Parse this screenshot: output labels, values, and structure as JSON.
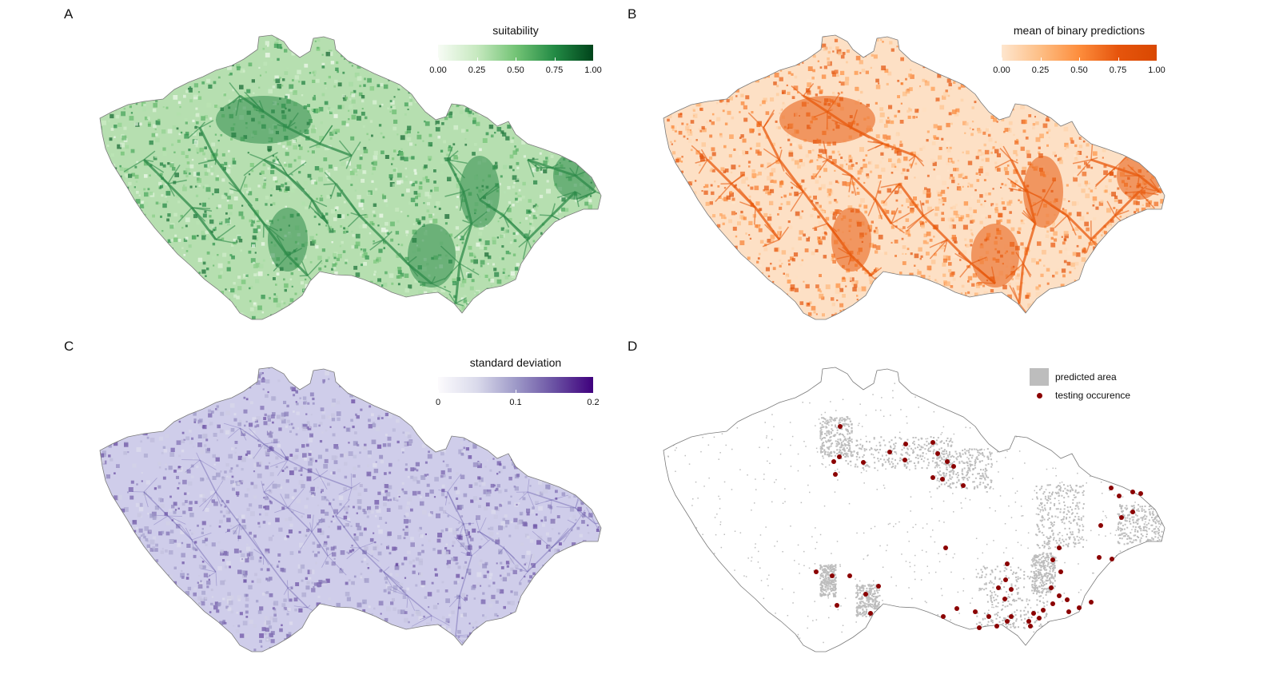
{
  "figure": {
    "panels": [
      {
        "id": "A",
        "label": "A",
        "type": "continuous_map",
        "legend": {
          "title": "suitability",
          "tick_labels": [
            "0.00",
            "0.25",
            "0.50",
            "0.75",
            "1.00"
          ],
          "range": [
            0,
            1
          ],
          "colors": [
            "#f7fcf5",
            "#c7e9c0",
            "#74c476",
            "#238b45",
            "#00441b"
          ]
        },
        "map_fill": "#b6dfb0",
        "map_accent": "#2e8b4a"
      },
      {
        "id": "B",
        "label": "B",
        "type": "continuous_map",
        "legend": {
          "title": "mean of binary predictions",
          "tick_labels": [
            "0.00",
            "0.25",
            "0.50",
            "0.75",
            "1.00"
          ],
          "range": [
            0,
            1
          ],
          "colors": [
            "#fee6ce",
            "#fdbe85",
            "#fd8d3c",
            "#e6550d",
            "#d94801"
          ]
        },
        "map_fill": "#fde0c5",
        "map_accent": "#e8590c"
      },
      {
        "id": "C",
        "label": "C",
        "type": "continuous_map",
        "legend": {
          "title": "standard deviation",
          "tick_labels": [
            "0",
            "0.1",
            "0.2"
          ],
          "tick_values": [
            0,
            0.1,
            0.2
          ],
          "range": [
            0,
            0.2
          ],
          "colors": [
            "#fcfbfd",
            "#dadaeb",
            "#9e9ac8",
            "#6a51a3",
            "#3f007d"
          ]
        },
        "map_fill": "#cfcdea",
        "map_accent": "#5c4fa6"
      },
      {
        "id": "D",
        "label": "D",
        "type": "binary_map",
        "legend": {
          "items": [
            {
              "label": "predicted area",
              "symbol": "square",
              "color": "#bdbdbd"
            },
            {
              "label": "testing occurence",
              "symbol": "point",
              "color": "#8b0000"
            }
          ]
        },
        "map_fill": "#ffffff",
        "map_accent": "#bdbdbd"
      }
    ]
  }
}
